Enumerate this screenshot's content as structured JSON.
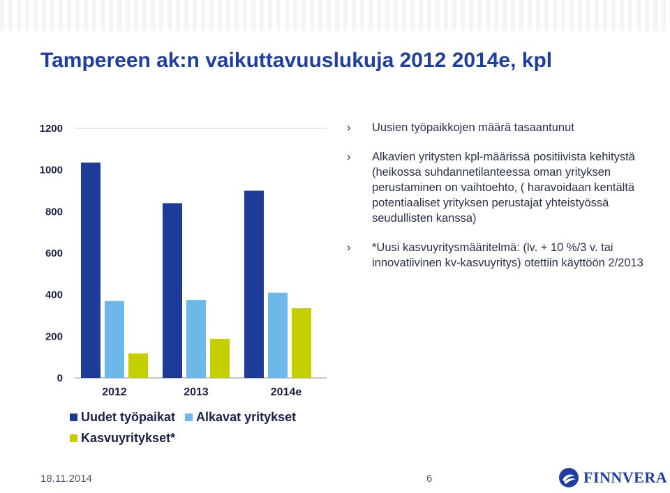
{
  "title": "Tampereen ak:n vaikuttavuuslukuja 2012 2014e, kpl",
  "chart_data": {
    "type": "bar",
    "categories": [
      "2012",
      "2013",
      "2014e"
    ],
    "series": [
      {
        "name": "Uudet työpaikat",
        "color": "#1f3b99",
        "values": [
          1035,
          840,
          900
        ]
      },
      {
        "name": "Alkavat yritykset",
        "color": "#6cb8e8",
        "values": [
          370,
          375,
          410
        ]
      },
      {
        "name": "Kasvuyritykset*",
        "color": "#c3cf00",
        "values": [
          118,
          188,
          335
        ]
      }
    ],
    "ylim": [
      0,
      1200
    ],
    "yticks": [
      0,
      200,
      400,
      600,
      800,
      1000,
      1200
    ],
    "grid": false,
    "legend_position": "bottom"
  },
  "bullets": [
    {
      "mark": "›",
      "text": "Uusien työpaikkojen määrä tasaantunut"
    },
    {
      "mark": "›",
      "text": "Alkavien yritysten kpl-määrissä positiivista kehitystä (heikossa suhdannetilanteessa oman yrityksen perustaminen on vaihtoehto, ( haravoidaan kentältä potentiaaliset yrityksen perustajat yhteistyössä seudullisten kanssa)"
    },
    {
      "mark": "›",
      "text": "*Uusi kasvuyritysmääritelmä: (lv. + 10 %/3 v. tai innovatiivinen kv-kasvuyritys) otettiin käyttöön 2/2013"
    }
  ],
  "footer": {
    "date": "18.11.2014",
    "page": "6"
  },
  "logo": {
    "text": "FINNVERA",
    "icon": "finnvera-logo-icon"
  }
}
